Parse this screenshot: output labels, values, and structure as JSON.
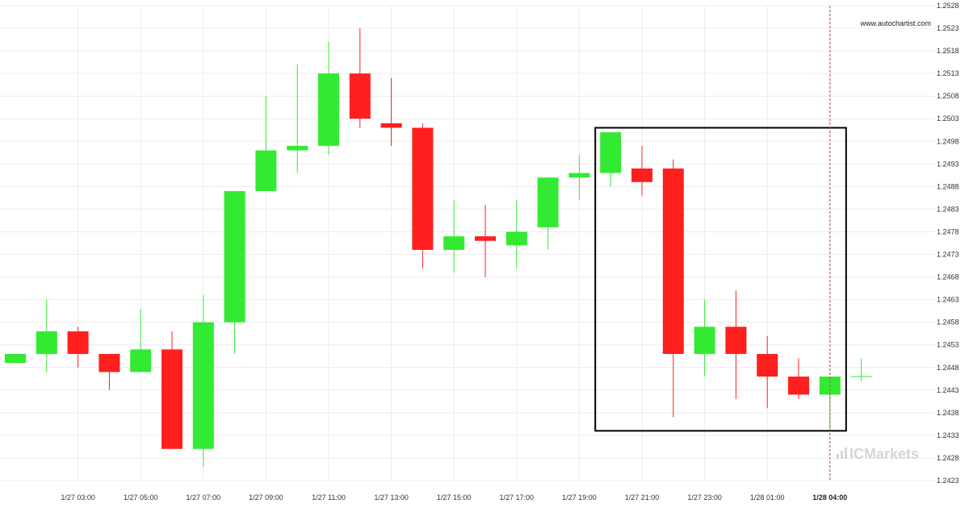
{
  "chart_data": {
    "type": "candlestick",
    "watermark": "www.autochartist.com",
    "brand_logo": {
      "prefix": "IC",
      "name": "Markets",
      "icon": "bar-signal-icon"
    },
    "ylim": [
      1.2423,
      1.2528
    ],
    "y_ticks": [
      "1.2423",
      "1.2428",
      "1.2433",
      "1.2438",
      "1.2443",
      "1.2448",
      "1.2453",
      "1.2458",
      "1.2463",
      "1.2468",
      "1.2473",
      "1.2478",
      "1.2483",
      "1.2488",
      "1.2493",
      "1.2498",
      "1.2503",
      "1.2508",
      "1.2513",
      "1.2518",
      "1.2523",
      "1.2528"
    ],
    "x_ticks": [
      {
        "label": "1/27 03:00",
        "index": 2
      },
      {
        "label": "1/27 05:00",
        "index": 4
      },
      {
        "label": "1/27 07:00",
        "index": 6
      },
      {
        "label": "1/27 09:00",
        "index": 8
      },
      {
        "label": "1/27 11:00",
        "index": 10
      },
      {
        "label": "1/27 13:00",
        "index": 12
      },
      {
        "label": "1/27 15:00",
        "index": 14
      },
      {
        "label": "1/27 17:00",
        "index": 16
      },
      {
        "label": "1/27 19:00",
        "index": 18
      },
      {
        "label": "1/27 21:00",
        "index": 20
      },
      {
        "label": "1/27 23:00",
        "index": 22
      },
      {
        "label": "1/28 01:00",
        "index": 24
      },
      {
        "label": "1/28 04:00",
        "index": 26,
        "current": true
      }
    ],
    "candles": [
      {
        "o": 1.2449,
        "h": 1.2451,
        "l": 1.2449,
        "c": 1.2451
      },
      {
        "o": 1.2451,
        "h": 1.2463,
        "l": 1.2447,
        "c": 1.2456
      },
      {
        "o": 1.2456,
        "h": 1.2457,
        "l": 1.2448,
        "c": 1.2451
      },
      {
        "o": 1.2451,
        "h": 1.2451,
        "l": 1.2443,
        "c": 1.2447
      },
      {
        "o": 1.2447,
        "h": 1.2461,
        "l": 1.2447,
        "c": 1.2452
      },
      {
        "o": 1.2452,
        "h": 1.2456,
        "l": 1.243,
        "c": 1.243
      },
      {
        "o": 1.243,
        "h": 1.2464,
        "l": 1.2426,
        "c": 1.2458
      },
      {
        "o": 1.2458,
        "h": 1.2487,
        "l": 1.2451,
        "c": 1.2487
      },
      {
        "o": 1.2487,
        "h": 1.2508,
        "l": 1.2487,
        "c": 1.2496
      },
      {
        "o": 1.2496,
        "h": 1.2515,
        "l": 1.2491,
        "c": 1.2497
      },
      {
        "o": 1.2497,
        "h": 1.252,
        "l": 1.2495,
        "c": 1.2513
      },
      {
        "o": 1.2513,
        "h": 1.2523,
        "l": 1.2501,
        "c": 1.2503
      },
      {
        "o": 1.2502,
        "h": 1.2512,
        "l": 1.2497,
        "c": 1.2501
      },
      {
        "o": 1.2501,
        "h": 1.2502,
        "l": 1.247,
        "c": 1.2474
      },
      {
        "o": 1.2474,
        "h": 1.2485,
        "l": 1.2469,
        "c": 1.2477
      },
      {
        "o": 1.2477,
        "h": 1.2484,
        "l": 1.2468,
        "c": 1.2476
      },
      {
        "o": 1.2475,
        "h": 1.2485,
        "l": 1.247,
        "c": 1.2478
      },
      {
        "o": 1.2479,
        "h": 1.249,
        "l": 1.2474,
        "c": 1.249
      },
      {
        "o": 1.249,
        "h": 1.2495,
        "l": 1.2485,
        "c": 1.2491
      },
      {
        "o": 1.2491,
        "h": 1.25,
        "l": 1.2488,
        "c": 1.25
      },
      {
        "o": 1.2492,
        "h": 1.2497,
        "l": 1.2486,
        "c": 1.2489
      },
      {
        "o": 1.2492,
        "h": 1.2494,
        "l": 1.2437,
        "c": 1.2451
      },
      {
        "o": 1.2451,
        "h": 1.2463,
        "l": 1.2446,
        "c": 1.2457
      },
      {
        "o": 1.2457,
        "h": 1.2465,
        "l": 1.2441,
        "c": 1.2451
      },
      {
        "o": 1.2451,
        "h": 1.2455,
        "l": 1.2439,
        "c": 1.2446
      },
      {
        "o": 1.2446,
        "h": 1.245,
        "l": 1.2441,
        "c": 1.2442
      },
      {
        "o": 1.2442,
        "h": 1.2446,
        "l": 1.2434,
        "c": 1.2446
      },
      {
        "o": 1.2446,
        "h": 1.245,
        "l": 1.2445,
        "c": 1.2446
      }
    ],
    "pattern_box": {
      "from_index": 19,
      "to_index": 26,
      "high": 1.2501,
      "low": 1.2434
    },
    "current_time_index": 26,
    "colors": {
      "up": "#33ea33",
      "down": "#ff1f1f",
      "box": "#000000",
      "grid": "#ececec",
      "current_line": "#b05050"
    }
  }
}
